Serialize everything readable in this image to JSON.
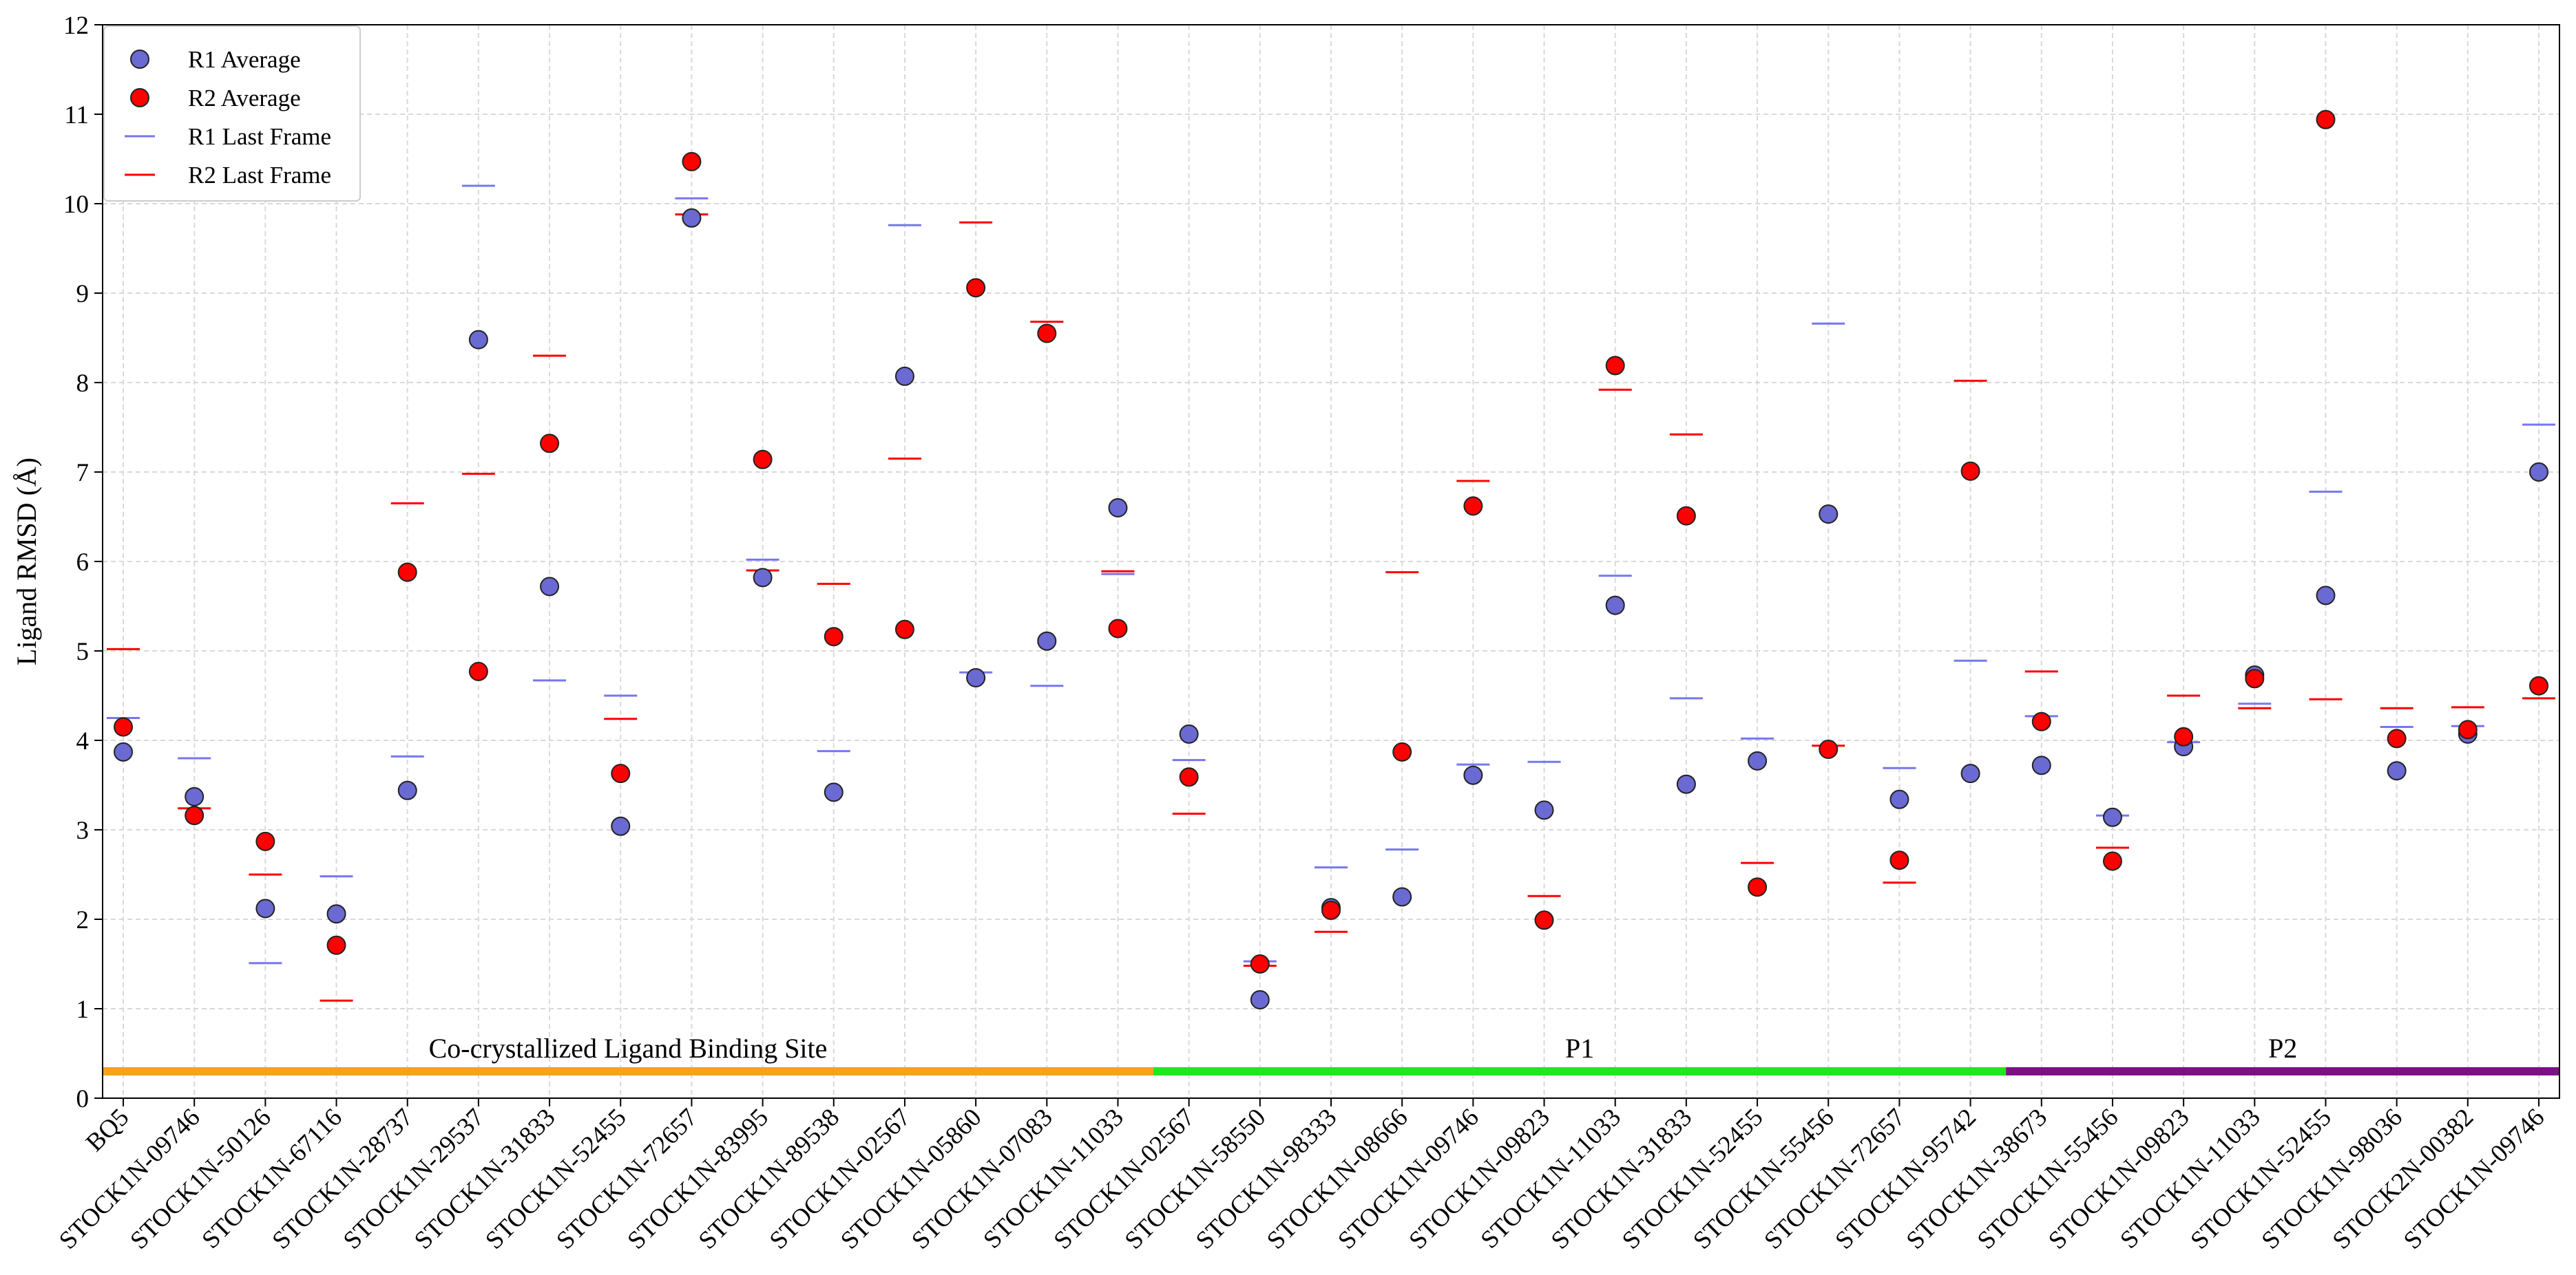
{
  "chart_data": {
    "type": "scatter",
    "title": "",
    "xlabel": "",
    "ylabel": "Ligand RMSD (Å)",
    "ylim": [
      0,
      12
    ],
    "yticks": [
      0,
      1,
      2,
      3,
      4,
      5,
      6,
      7,
      8,
      9,
      10,
      11,
      12
    ],
    "grid": true,
    "legend_position": "top-left",
    "categories": [
      "BQ5",
      "STOCK1N-09746",
      "STOCK1N-50126",
      "STOCK1N-67116",
      "STOCK1N-28737",
      "STOCK1N-29537",
      "STOCK1N-31833",
      "STOCK1N-52455",
      "STOCK1N-72657",
      "STOCK1N-83995",
      "STOCK1N-89538",
      "STOCK1N-02567",
      "STOCK1N-05860",
      "STOCK1N-07083",
      "STOCK1N-11033",
      "STOCK1N-02567",
      "STOCK1N-58550",
      "STOCK1N-98333",
      "STOCK1N-08666",
      "STOCK1N-09746",
      "STOCK1N-09823",
      "STOCK1N-11033",
      "STOCK1N-31833",
      "STOCK1N-52455",
      "STOCK1N-55456",
      "STOCK1N-72657",
      "STOCK1N-95742",
      "STOCK1N-38673",
      "STOCK1N-55456",
      "STOCK1N-09823",
      "STOCK1N-11033",
      "STOCK1N-52455",
      "STOCK1N-98036",
      "STOCK2N-00382",
      "STOCK1N-09746"
    ],
    "series": [
      {
        "name": "R1 Average",
        "marker": "circle",
        "color": "#6a6ad2",
        "values": [
          3.87,
          3.37,
          2.12,
          2.06,
          3.44,
          8.48,
          5.72,
          3.04,
          9.84,
          5.82,
          3.42,
          8.07,
          4.7,
          5.11,
          6.6,
          4.07,
          1.1,
          2.13,
          2.25,
          3.61,
          3.22,
          5.51,
          3.51,
          3.77,
          6.53,
          3.34,
          3.63,
          3.72,
          3.14,
          3.93,
          4.73,
          5.62,
          3.66,
          4.07,
          7.0
        ]
      },
      {
        "name": "R2 Average",
        "marker": "circle",
        "color": "#ff0000",
        "values": [
          4.15,
          3.16,
          2.87,
          1.71,
          5.88,
          4.77,
          7.32,
          3.63,
          10.47,
          7.14,
          5.16,
          5.24,
          9.06,
          8.55,
          5.25,
          3.59,
          1.5,
          2.1,
          3.87,
          6.62,
          1.99,
          8.19,
          6.51,
          2.36,
          3.9,
          2.66,
          7.01,
          4.21,
          2.65,
          4.04,
          4.69,
          10.94,
          4.02,
          4.12,
          4.61
        ]
      },
      {
        "name": "R1 Last Frame",
        "marker": "hline",
        "color": "#7777ee",
        "values": [
          4.25,
          3.8,
          1.51,
          2.48,
          3.82,
          10.2,
          4.67,
          4.5,
          10.06,
          6.02,
          3.88,
          9.76,
          4.76,
          4.61,
          5.86,
          3.78,
          1.53,
          2.58,
          2.78,
          3.73,
          3.76,
          5.84,
          4.47,
          4.02,
          8.66,
          3.69,
          4.89,
          4.27,
          3.16,
          3.98,
          4.41,
          6.78,
          4.15,
          4.16,
          7.53
        ]
      },
      {
        "name": "R2 Last Frame",
        "marker": "hline",
        "color": "#ff0000",
        "values": [
          5.02,
          3.24,
          2.5,
          1.09,
          6.65,
          6.98,
          8.3,
          4.24,
          9.88,
          5.9,
          5.75,
          7.15,
          9.79,
          8.68,
          5.89,
          3.18,
          1.48,
          1.86,
          5.88,
          6.9,
          2.26,
          7.92,
          7.42,
          2.63,
          3.94,
          2.41,
          8.02,
          4.77,
          2.8,
          4.5,
          4.36,
          4.46,
          4.36,
          4.37,
          4.47
        ]
      }
    ],
    "regions": [
      {
        "label": "Co-crystallized Ligand Binding Site",
        "start": 0,
        "end": 14,
        "color": "#f5a319"
      },
      {
        "label": "P1",
        "start": 15,
        "end": 26,
        "color": "#1ee81e"
      },
      {
        "label": "P2",
        "start": 27,
        "end": 34,
        "color": "#7f0f86"
      }
    ]
  }
}
